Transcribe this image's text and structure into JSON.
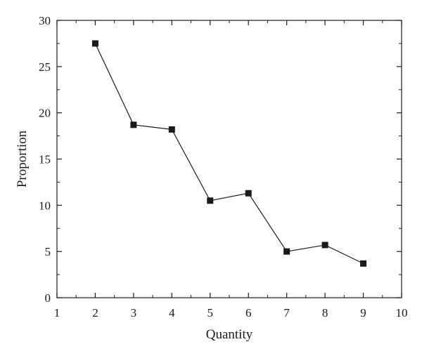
{
  "chart_data": {
    "type": "line",
    "xlabel": "Quantity",
    "ylabel": "Proportion",
    "xlim": [
      1,
      10
    ],
    "ylim": [
      0,
      30
    ],
    "x_ticks": [
      "1",
      "2",
      "3",
      "4",
      "5",
      "6",
      "7",
      "8",
      "9",
      "10"
    ],
    "y_ticks": [
      "0",
      "5",
      "10",
      "15",
      "20",
      "25",
      "30"
    ],
    "grid": false,
    "marker": "square",
    "series": [
      {
        "x": [
          2,
          3,
          4,
          5,
          6,
          7,
          8,
          9
        ],
        "y": [
          27.5,
          18.7,
          18.2,
          10.5,
          11.3,
          5.0,
          5.7,
          3.7
        ]
      }
    ]
  }
}
